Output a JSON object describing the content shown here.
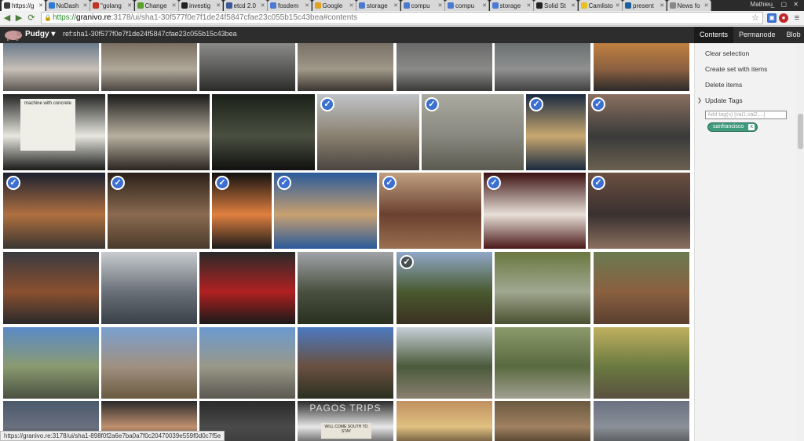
{
  "browser": {
    "tabs": [
      {
        "label": "https://g",
        "favicon_color": "#3a3a3a",
        "active": true
      },
      {
        "label": "NoDash",
        "favicon_color": "#2a7bd8",
        "active": false
      },
      {
        "label": "\"golang",
        "favicon_color": "#c23321",
        "active": false
      },
      {
        "label": "Change",
        "favicon_color": "#5aa02c",
        "active": false
      },
      {
        "label": "investig",
        "favicon_color": "#222222",
        "active": false
      },
      {
        "label": "etcd 2.0",
        "favicon_color": "#3b5998",
        "active": false
      },
      {
        "label": "fosdem",
        "favicon_color": "#4a7bd0",
        "active": false
      },
      {
        "label": "Google",
        "favicon_color": "#e0a020",
        "active": false
      },
      {
        "label": "storage",
        "favicon_color": "#4a7bd0",
        "active": false
      },
      {
        "label": "compu",
        "favicon_color": "#4a7bd0",
        "active": false
      },
      {
        "label": "compu",
        "favicon_color": "#4a7bd0",
        "active": false
      },
      {
        "label": "storage",
        "favicon_color": "#4a7bd0",
        "active": false
      },
      {
        "label": "Solid St",
        "favicon_color": "#222222",
        "active": false
      },
      {
        "label": "Camlisto",
        "favicon_color": "#e8c020",
        "active": false
      },
      {
        "label": "present",
        "favicon_color": "#1a5fa0",
        "active": false
      },
      {
        "label": "News fo",
        "favicon_color": "#888888",
        "active": false
      }
    ],
    "profile_name": "Mathieu",
    "window_controls": "_ ▢ ✕",
    "url": {
      "scheme": "https://",
      "host": "granivo.re",
      "path": ":3178/ui/sha1-30f577f0e7f1de24f5847cfae23c055b15c43bea#contents"
    }
  },
  "app": {
    "user": "Pudgy ▾",
    "ref": "ref:sha1-30f577f0e7f1de24f5847cfae23c055b15c43bea",
    "side_tabs": [
      {
        "label": "Contents",
        "active": true
      },
      {
        "label": "Permanode",
        "active": false
      },
      {
        "label": "Blob",
        "active": false
      }
    ]
  },
  "sidebar": {
    "clear_selection": "Clear selection",
    "create_set": "Create set with items",
    "delete_items": "Delete items",
    "update_tags": "Update Tags",
    "tag_placeholder": "Add tag(s) [val1,val2,...]",
    "tag": "sanfrancisco",
    "tag_remove": "x"
  },
  "thumbnails": [
    {
      "row": 0,
      "col": 0,
      "colors": [
        "#6a7a8a",
        "#c8c0b8",
        "#5a5550"
      ],
      "checked": false
    },
    {
      "row": 0,
      "col": 1,
      "colors": [
        "#7a6f60",
        "#b0a89a",
        "#4a4540"
      ],
      "checked": false
    },
    {
      "row": 0,
      "col": 2,
      "colors": [
        "#8a8a88",
        "#5a5a58",
        "#2a2a28"
      ],
      "checked": false
    },
    {
      "row": 0,
      "col": 3,
      "colors": [
        "#7a7068",
        "#a09888",
        "#3a3530"
      ],
      "checked": false
    },
    {
      "row": 0,
      "col": 4,
      "colors": [
        "#6a6a6a",
        "#8a8a88",
        "#3a3a38"
      ],
      "checked": false
    },
    {
      "row": 0,
      "col": 5,
      "colors": [
        "#6a7070",
        "#909090",
        "#404040"
      ],
      "checked": false
    },
    {
      "row": 0,
      "col": 6,
      "colors": [
        "#c08040",
        "#8a6040",
        "#2a2a2a"
      ],
      "checked": false
    },
    {
      "row": 1,
      "col": 0,
      "colors": [
        "#222222",
        "#e8e8e0",
        "#1a1a1a"
      ],
      "checked": false
    },
    {
      "row": 1,
      "col": 1,
      "colors": [
        "#1a1a1a",
        "#b8b0a0",
        "#2a2520"
      ],
      "checked": false
    },
    {
      "row": 1,
      "col": 2,
      "colors": [
        "#1a2018",
        "#4a5040",
        "#101010"
      ],
      "checked": false
    },
    {
      "row": 1,
      "col": 3,
      "colors": [
        "#c0c4c8",
        "#8a8070",
        "#4a4540"
      ],
      "checked": true
    },
    {
      "row": 1,
      "col": 4,
      "colors": [
        "#aaaaa0",
        "#888880",
        "#5a5a50"
      ],
      "checked": true
    },
    {
      "row": 1,
      "col": 5,
      "colors": [
        "#1a2a40",
        "#c8a870",
        "#1a2a40"
      ],
      "checked": true
    },
    {
      "row": 1,
      "col": 6,
      "colors": [
        "#8a7060",
        "#3a3a3a",
        "#6a6050"
      ],
      "checked": true
    },
    {
      "row": 2,
      "col": 0,
      "colors": [
        "#1a2030",
        "#b07040",
        "#3a3530"
      ],
      "checked": true
    },
    {
      "row": 2,
      "col": 1,
      "colors": [
        "#2a2018",
        "#8a6a50",
        "#4a3a2a"
      ],
      "checked": true
    },
    {
      "row": 2,
      "col": 2,
      "colors": [
        "#101010",
        "#e08040",
        "#1a1a1a"
      ],
      "checked": true
    },
    {
      "row": 2,
      "col": 3,
      "colors": [
        "#2a5a9a",
        "#c8a070",
        "#2a5a9a"
      ],
      "checked": true
    },
    {
      "row": 2,
      "col": 4,
      "colors": [
        "#c0a080",
        "#6a4030",
        "#9a7050"
      ],
      "checked": true
    },
    {
      "row": 2,
      "col": 5,
      "colors": [
        "#3a1010",
        "#e8e0d8",
        "#4a1818"
      ],
      "checked": true
    },
    {
      "row": 2,
      "col": 6,
      "colors": [
        "#6a5040",
        "#3a3030",
        "#8a7060"
      ],
      "checked": true
    },
    {
      "row": 3,
      "col": 0,
      "colors": [
        "#3a3a40",
        "#8a5030",
        "#2a2a2a"
      ],
      "checked": false
    },
    {
      "row": 3,
      "col": 1,
      "colors": [
        "#c8ccd0",
        "#6a7078",
        "#3a4048"
      ],
      "checked": false
    },
    {
      "row": 3,
      "col": 2,
      "colors": [
        "#2a2a2a",
        "#b02020",
        "#1a1a1a"
      ],
      "checked": false
    },
    {
      "row": 3,
      "col": 3,
      "colors": [
        "#a0a4a8",
        "#4a5040",
        "#2a3020"
      ],
      "checked": false
    },
    {
      "row": 3,
      "col": 4,
      "colors": [
        "#90a8c8",
        "#4a5a30",
        "#3a3020"
      ],
      "checked": false
    },
    {
      "row": 3,
      "col": 5,
      "colors": [
        "#6a7840",
        "#a0a890",
        "#4a5030"
      ],
      "checked": false
    },
    {
      "row": 3,
      "col": 6,
      "colors": [
        "#6a7a50",
        "#8a6040",
        "#5a4030"
      ],
      "checked": false
    },
    {
      "row": 4,
      "col": 0,
      "colors": [
        "#5a8ac8",
        "#8a9a70",
        "#4a5040"
      ],
      "checked": false
    },
    {
      "row": 4,
      "col": 1,
      "colors": [
        "#7aa0d0",
        "#a09080",
        "#6a5a40"
      ],
      "checked": false
    },
    {
      "row": 4,
      "col": 2,
      "colors": [
        "#6a9ad0",
        "#9a9888",
        "#5a5850"
      ],
      "checked": false
    },
    {
      "row": 4,
      "col": 3,
      "colors": [
        "#4a7ac0",
        "#6a5040",
        "#2a3020"
      ],
      "checked": false
    },
    {
      "row": 4,
      "col": 4,
      "colors": [
        "#c8d0d8",
        "#4a5a3a",
        "#8a8070"
      ],
      "checked": false
    },
    {
      "row": 4,
      "col": 5,
      "colors": [
        "#8a9a6a",
        "#5a6a40",
        "#a0a090"
      ],
      "checked": false
    },
    {
      "row": 4,
      "col": 6,
      "colors": [
        "#c0b060",
        "#6a7a40",
        "#5a5040"
      ],
      "checked": false
    },
    {
      "row": 5,
      "col": 0,
      "colors": [
        "#4a5a6a",
        "#6a7080",
        "#2a2a2a"
      ],
      "checked": false
    },
    {
      "row": 5,
      "col": 1,
      "colors": [
        "#2a2a2a",
        "#c09070",
        "#1a1a1a"
      ],
      "checked": false
    },
    {
      "row": 5,
      "col": 2,
      "colors": [
        "#2a2a2a",
        "#4a4a4a",
        "#3a3a3a"
      ],
      "checked": false
    },
    {
      "row": 5,
      "col": 3,
      "colors": [
        "#2a2a2a",
        "#e8e8e8",
        "#3a3a3a"
      ],
      "checked": false
    },
    {
      "row": 5,
      "col": 4,
      "colors": [
        "#c09060",
        "#e0c080",
        "#4a3a2a"
      ],
      "checked": false
    },
    {
      "row": 5,
      "col": 5,
      "colors": [
        "#6a5a40",
        "#a08060",
        "#3a3020"
      ],
      "checked": false
    },
    {
      "row": 5,
      "col": 6,
      "colors": [
        "#6a7080",
        "#8a9098",
        "#4a4a4a"
      ],
      "checked": false
    }
  ],
  "thumb_text": {
    "machine_with_concrete": "machine with concrete",
    "galapagos": "PAGOS TRIPS",
    "sign": "WILL COME SOUTH TO STAY"
  },
  "status_url": "https://granivo.re:3178/ui/sha1-898f0f2a6e7ba0a7f0c20470039e559f0d0c7f5e"
}
